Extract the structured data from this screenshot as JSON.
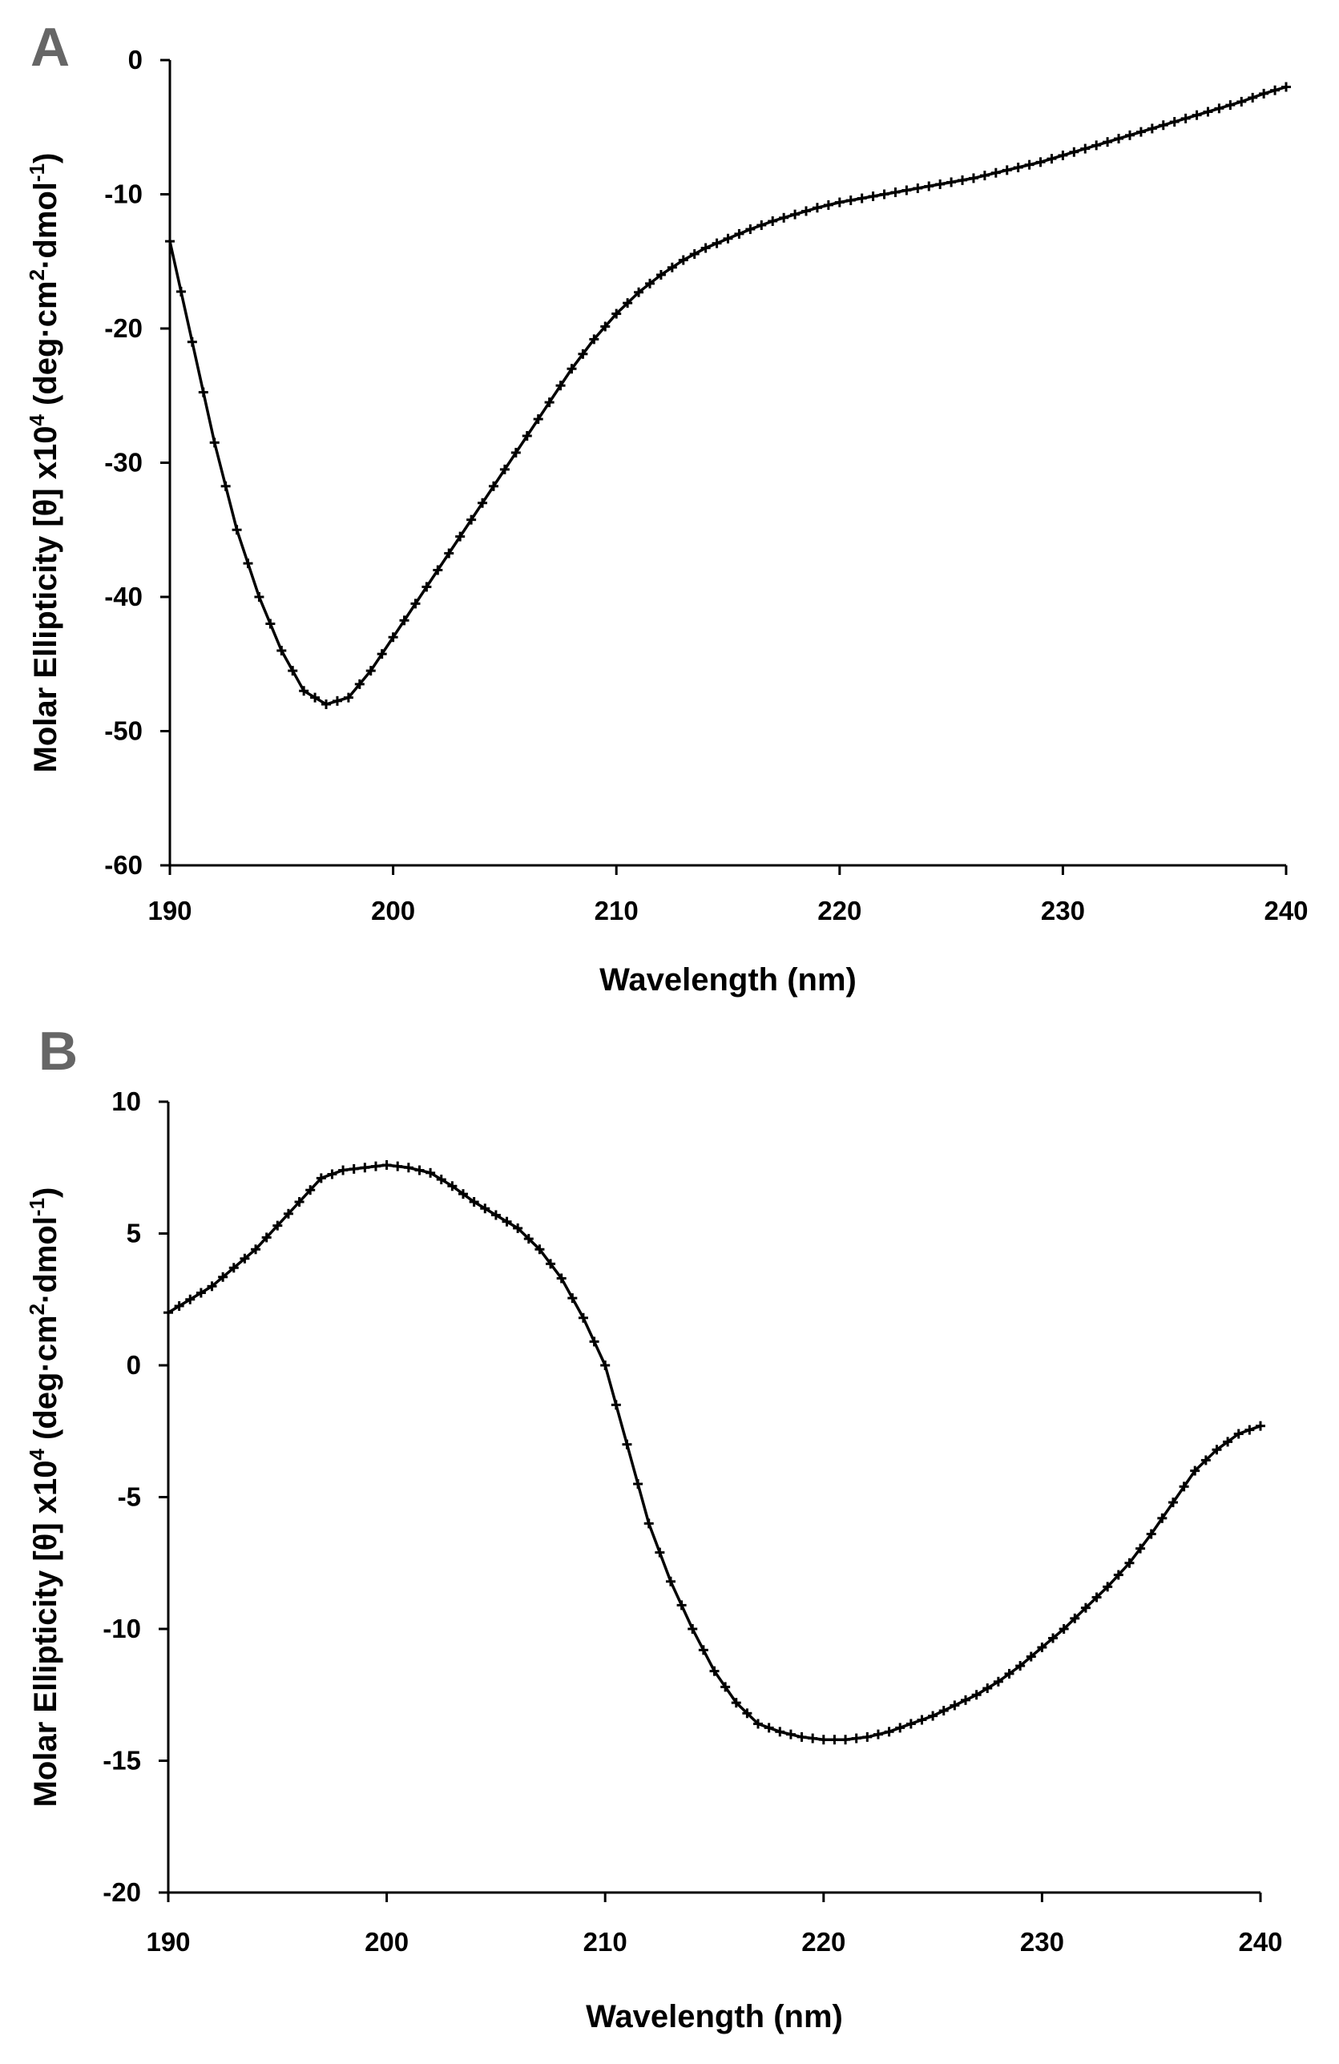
{
  "chart_data": [
    {
      "type": "line",
      "panel": "A",
      "title": "",
      "xlabel": "Wavelength (nm)",
      "ylabel": {
        "prefix": "Molar Ellipticity [",
        "theta": "θ",
        "mid1": "] x10",
        "exp1": "4",
        "mid2": " (deg·cm",
        "exp2": "2",
        "mid3": "·dmol",
        "exp3": "-1",
        "suffix": ")"
      },
      "xlim": [
        190,
        240
      ],
      "ylim": [
        -60,
        0
      ],
      "xticks": [
        "190",
        "200",
        "210",
        "220",
        "230",
        "240"
      ],
      "yticks": [
        "0",
        "-10",
        "-20",
        "-30",
        "-40",
        "-50",
        "-60"
      ],
      "grid": false,
      "series": [
        {
          "name": "A",
          "color": "#000000",
          "x": [
            190,
            191,
            192,
            193,
            194,
            195,
            196,
            197,
            198,
            199,
            200,
            201,
            202,
            203,
            204,
            205,
            206,
            207,
            208,
            209,
            210,
            211,
            212,
            213,
            214,
            215,
            216,
            217,
            218,
            219,
            220,
            221,
            222,
            223,
            224,
            225,
            226,
            227,
            228,
            229,
            230,
            231,
            232,
            233,
            234,
            235,
            236,
            237,
            238,
            239,
            240
          ],
          "y": [
            -13.5,
            -21,
            -28.5,
            -35,
            -40,
            -44,
            -47,
            -48,
            -47.5,
            -45.5,
            -43,
            -40.5,
            -38,
            -35.5,
            -33,
            -30.5,
            -28,
            -25.5,
            -23,
            -20.8,
            -18.9,
            -17.3,
            -16,
            -14.9,
            -14,
            -13.3,
            -12.6,
            -12,
            -11.5,
            -11,
            -10.6,
            -10.3,
            -10,
            -9.7,
            -9.4,
            -9.1,
            -8.8,
            -8.4,
            -8,
            -7.6,
            -7.1,
            -6.6,
            -6.1,
            -5.6,
            -5.1,
            -4.6,
            -4.1,
            -3.6,
            -3.1,
            -2.5,
            -2
          ]
        }
      ]
    },
    {
      "type": "line",
      "panel": "B",
      "title": "",
      "xlabel": "Wavelength (nm)",
      "ylabel": {
        "prefix": "Molar Ellipticity [",
        "theta": "θ",
        "mid1": "] x10",
        "exp1": "4",
        "mid2": " (deg·cm",
        "exp2": "2",
        "mid3": "·dmol",
        "exp3": "-1",
        "suffix": ")"
      },
      "xlim": [
        190,
        240
      ],
      "ylim": [
        -20,
        10
      ],
      "xticks": [
        "190",
        "200",
        "210",
        "220",
        "230",
        "240"
      ],
      "yticks": [
        "10",
        "5",
        "0",
        "-5",
        "-10",
        "-15",
        "-20"
      ],
      "grid": false,
      "series": [
        {
          "name": "B",
          "color": "#000000",
          "x": [
            190,
            191,
            192,
            193,
            194,
            195,
            196,
            197,
            198,
            199,
            200,
            201,
            202,
            203,
            204,
            205,
            206,
            207,
            208,
            209,
            210,
            211,
            212,
            213,
            214,
            215,
            216,
            217,
            218,
            219,
            220,
            221,
            222,
            223,
            224,
            225,
            226,
            227,
            228,
            229,
            230,
            231,
            232,
            233,
            234,
            235,
            236,
            237,
            238,
            239,
            240
          ],
          "y": [
            2,
            2.5,
            3,
            3.7,
            4.4,
            5.3,
            6.2,
            7.1,
            7.4,
            7.5,
            7.6,
            7.5,
            7.3,
            6.8,
            6.2,
            5.7,
            5.2,
            4.4,
            3.3,
            1.8,
            0,
            -3,
            -6,
            -8.2,
            -10,
            -11.6,
            -12.8,
            -13.6,
            -13.9,
            -14.1,
            -14.2,
            -14.2,
            -14.1,
            -13.9,
            -13.6,
            -13.3,
            -12.9,
            -12.5,
            -12,
            -11.4,
            -10.7,
            -10,
            -9.2,
            -8.4,
            -7.5,
            -6.4,
            -5.2,
            -4,
            -3.2,
            -2.6,
            -2.3
          ]
        }
      ]
    }
  ]
}
